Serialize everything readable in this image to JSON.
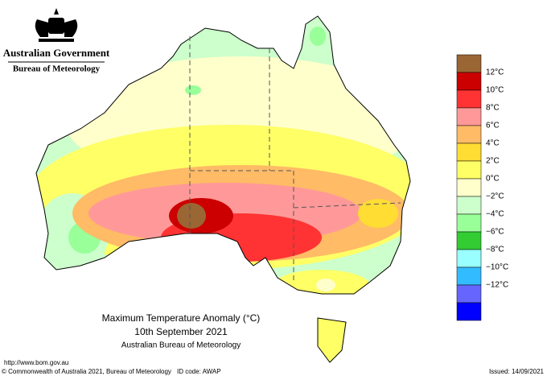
{
  "header": {
    "government": "Australian Government",
    "bureau": "Bureau of Meteorology"
  },
  "legend": {
    "colors": [
      "#9a6633",
      "#cc0000",
      "#ff3333",
      "#ff9999",
      "#ffbb66",
      "#ffdd33",
      "#ffff66",
      "#ffffcc",
      "#ccffcc",
      "#99ff99",
      "#33cc33",
      "#99ffff",
      "#33bbff",
      "#6666ff",
      "#0000ff"
    ],
    "labels": [
      "12°C",
      "10°C",
      "8°C",
      "6°C",
      "4°C",
      "2°C",
      "0°C",
      "−2°C",
      "−4°C",
      "−6°C",
      "−8°C",
      "−10°C",
      "−12°C"
    ]
  },
  "caption": {
    "title": "Maximum Temperature Anomaly (°C)",
    "date": "10th September 2021",
    "source": "Australian Bureau of Meteorology"
  },
  "footer": {
    "url": "http://www.bom.gov.au",
    "copyright": "© Commonwealth of Australia 2021, Bureau of Meteorology",
    "id_code": "ID code: AWAP",
    "issued": "Issued: 14/09/2021"
  }
}
